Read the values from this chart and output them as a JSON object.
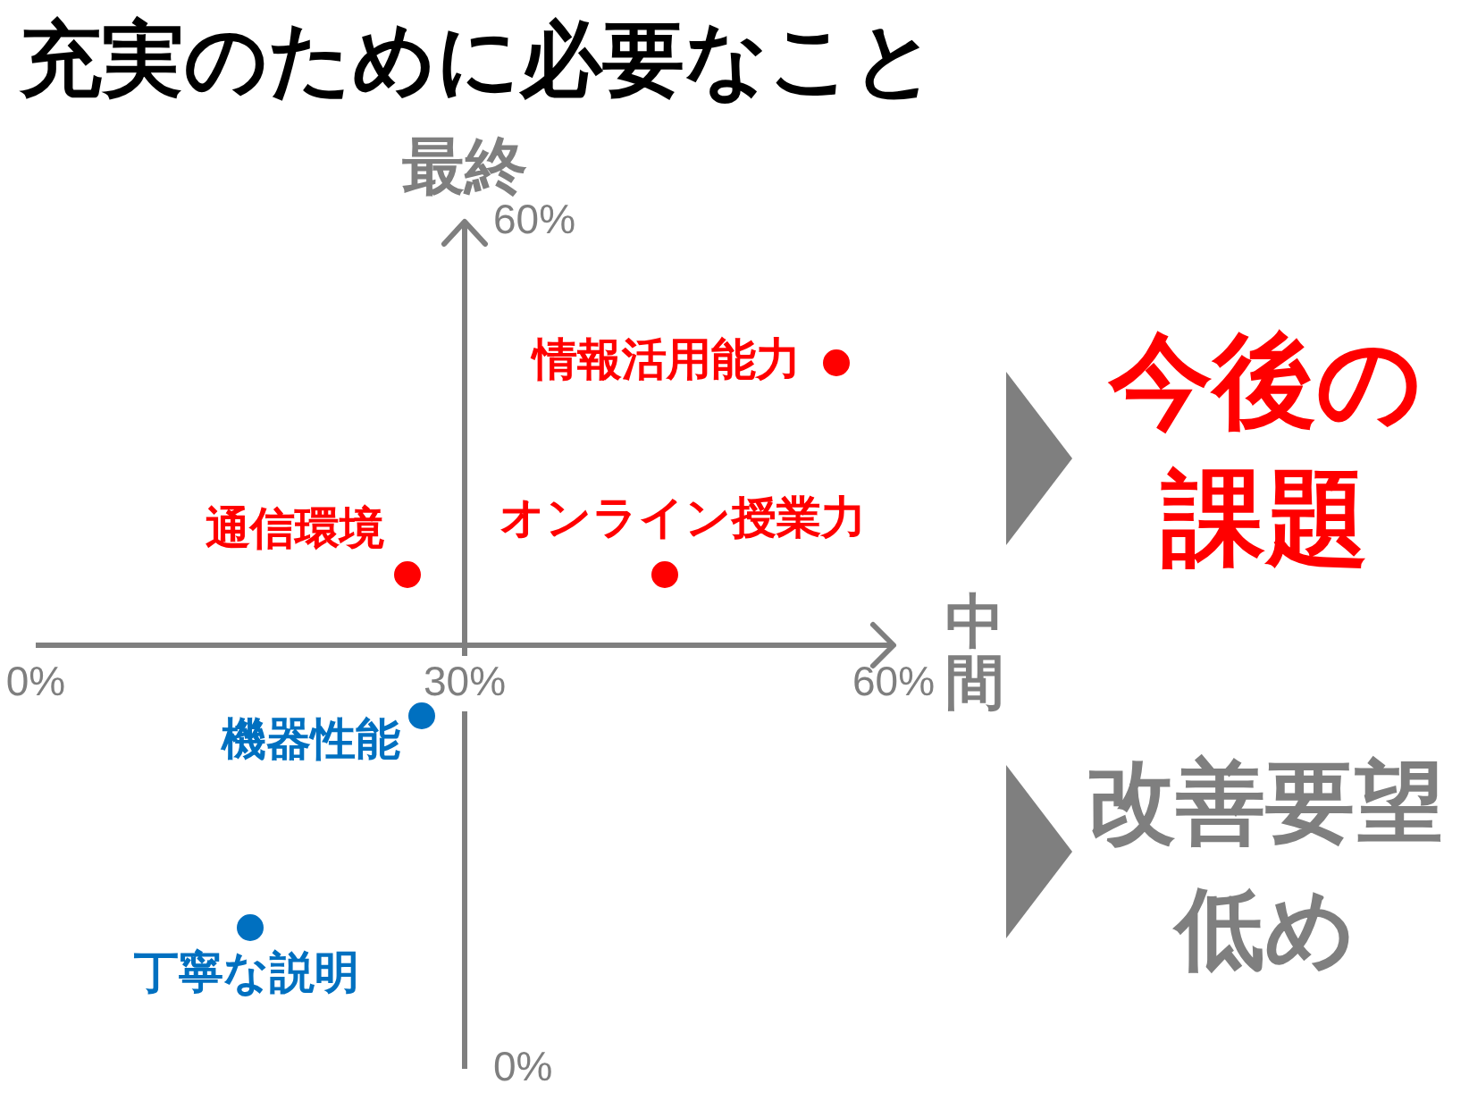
{
  "chart_data": {
    "type": "scatter",
    "title": "充実のために必要なこと",
    "xlabel": "中間",
    "ylabel": "最終",
    "xlim": [
      0,
      60
    ],
    "ylim": [
      0,
      60
    ],
    "xticks": [
      {
        "value": 0,
        "label": "0%"
      },
      {
        "value": 30,
        "label": "30%"
      },
      {
        "value": 60,
        "label": "60%"
      }
    ],
    "yticks": [
      {
        "value": 0,
        "label": "0%"
      },
      {
        "value": 60,
        "label": "60%"
      }
    ],
    "marker": "circle",
    "series": [
      {
        "name": "情報活用能力",
        "color": "#ff0000",
        "x": [
          56
        ],
        "values": [
          50
        ]
      },
      {
        "name": "通信環境",
        "color": "#ff0000",
        "x": [
          26
        ],
        "values": [
          35
        ]
      },
      {
        "name": "オンライン授業力",
        "color": "#ff0000",
        "x": [
          44
        ],
        "values": [
          35
        ]
      },
      {
        "name": "機器性能",
        "color": "#0070c0",
        "x": [
          27
        ],
        "values": [
          25
        ]
      },
      {
        "name": "丁寧な説明",
        "color": "#0070c0",
        "x": [
          15
        ],
        "values": [
          10
        ]
      }
    ],
    "annotations": [
      "今後の課題",
      "改善要望低め"
    ]
  }
}
